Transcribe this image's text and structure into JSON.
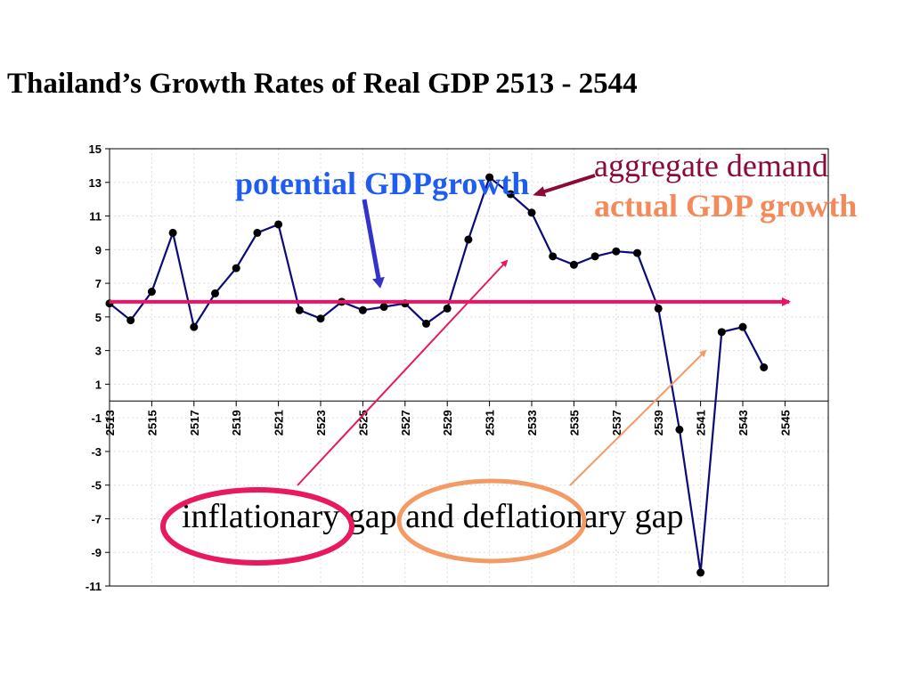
{
  "title": "Thailand’s Growth  Rates of Real GDP  2513 - 2544",
  "annotations": {
    "potential": "potential GDPgrowth",
    "demand": "aggregate demand",
    "actual": "actual GDP growth",
    "gap": "inflationary gap and deflationary gap"
  },
  "colors": {
    "series": "#0a0a7a",
    "potential_line": "#ee1166",
    "potential_text": "#1f5cf0",
    "demand_text": "#8a0a3a",
    "actual_text": "#f48a5a",
    "inflation_ellipse": "#e8195f",
    "deflation_ellipse": "#f49a64",
    "blue_arrow": "#3333cc"
  },
  "chart_data": {
    "type": "line",
    "title": "Thailand’s Growth  Rates of Real GDP  2513 - 2544",
    "xlabel": "",
    "ylabel": "",
    "x": [
      2513,
      2514,
      2515,
      2516,
      2517,
      2518,
      2519,
      2520,
      2521,
      2522,
      2523,
      2524,
      2525,
      2526,
      2527,
      2528,
      2529,
      2530,
      2531,
      2532,
      2533,
      2534,
      2535,
      2536,
      2537,
      2538,
      2539,
      2540,
      2541,
      2542,
      2543,
      2544
    ],
    "y": [
      5.8,
      4.8,
      6.5,
      10.0,
      4.4,
      6.4,
      7.9,
      10.0,
      10.5,
      5.4,
      4.9,
      5.9,
      5.4,
      5.6,
      5.8,
      4.6,
      5.5,
      9.6,
      13.3,
      12.3,
      11.2,
      8.6,
      8.1,
      8.6,
      8.9,
      8.8,
      5.5,
      -1.7,
      -10.2,
      4.1,
      4.4,
      2.0
    ],
    "xlim": [
      2513,
      2547
    ],
    "ylim": [
      -11,
      15
    ],
    "y_ticks": [
      15,
      13,
      11,
      9,
      7,
      5,
      3,
      1,
      -1,
      -3,
      -5,
      -7,
      -9,
      -11
    ],
    "x_ticks": [
      2513,
      2515,
      2517,
      2519,
      2521,
      2523,
      2525,
      2527,
      2529,
      2531,
      2533,
      2535,
      2537,
      2539,
      2541,
      2543,
      2545
    ],
    "potential_growth": 5.9,
    "grid": true,
    "legend": "none"
  }
}
